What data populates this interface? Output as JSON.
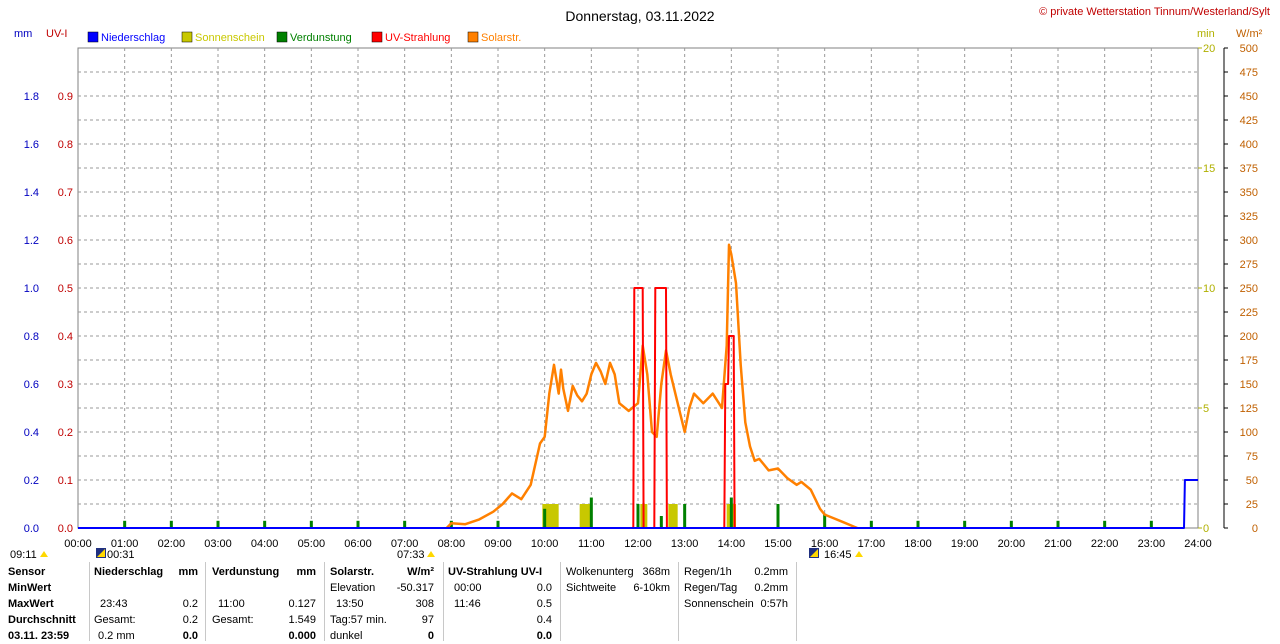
{
  "header": {
    "title": "Donnerstag, 03.11.2022",
    "copyright": "© private Wetterstation Tinnum/Westerland/Sylt"
  },
  "axes": {
    "mm_label": "mm",
    "uv_label": "UV-I",
    "min_label": "min",
    "wm2_label": "W/m²"
  },
  "legend": [
    {
      "label": "Niederschlag",
      "color": "#0000ff"
    },
    {
      "label": "Sonnenschein",
      "color": "#c8c800"
    },
    {
      "label": "Verdunstung",
      "color": "#008000"
    },
    {
      "label": "UV-Strahlung",
      "color": "#ff0000"
    },
    {
      "label": "Solarstr.",
      "color": "#ff8000"
    }
  ],
  "markers": {
    "sunrise_prev": "09:11",
    "moonrise": "00:31",
    "sunrise": "07:33",
    "sunset": "16:45"
  },
  "chart_data": {
    "type": "line",
    "title": "Donnerstag, 03.11.2022",
    "x_range": [
      "00:00",
      "24:00"
    ],
    "x_ticks": [
      "00:00",
      "01:00",
      "02:00",
      "03:00",
      "04:00",
      "05:00",
      "06:00",
      "07:00",
      "08:00",
      "09:00",
      "10:00",
      "11:00",
      "12:00",
      "13:00",
      "14:00",
      "15:00",
      "16:00",
      "17:00",
      "18:00",
      "19:00",
      "20:00",
      "21:00",
      "22:00",
      "23:00",
      "24:00"
    ],
    "y_mm": {
      "label": "mm",
      "range": [
        0,
        2.0
      ],
      "ticks": [
        "0.0",
        "0.2",
        "0.4",
        "0.6",
        "0.8",
        "1.0",
        "1.2",
        "1.4",
        "1.6",
        "1.8"
      ]
    },
    "y_uv": {
      "label": "UV-I",
      "range": [
        0,
        1.0
      ],
      "ticks": [
        "0.0",
        "0.1",
        "0.2",
        "0.3",
        "0.4",
        "0.5",
        "0.6",
        "0.7",
        "0.8",
        "0.9"
      ]
    },
    "y_min": {
      "label": "min",
      "range": [
        0,
        20
      ],
      "ticks": [
        "0",
        "5",
        "10",
        "15",
        "20"
      ]
    },
    "y_wm2": {
      "label": "W/m²",
      "range": [
        0,
        500
      ],
      "ticks": [
        "0",
        "25",
        "50",
        "75",
        "100",
        "125",
        "150",
        "175",
        "200",
        "225",
        "250",
        "275",
        "300",
        "325",
        "350",
        "375",
        "400",
        "425",
        "450",
        "475",
        "500"
      ]
    },
    "grid": true,
    "series": [
      {
        "name": "Solarstr.",
        "axis": "W/m²",
        "color": "#ff8000",
        "points": [
          [
            7.9,
            0
          ],
          [
            8.0,
            5
          ],
          [
            8.3,
            4
          ],
          [
            8.6,
            9
          ],
          [
            8.9,
            17
          ],
          [
            9.1,
            25
          ],
          [
            9.3,
            36
          ],
          [
            9.5,
            30
          ],
          [
            9.7,
            45
          ],
          [
            9.9,
            88
          ],
          [
            10.0,
            95
          ],
          [
            10.1,
            140
          ],
          [
            10.2,
            170
          ],
          [
            10.3,
            140
          ],
          [
            10.35,
            165
          ],
          [
            10.4,
            145
          ],
          [
            10.5,
            122
          ],
          [
            10.6,
            148
          ],
          [
            10.7,
            138
          ],
          [
            10.8,
            132
          ],
          [
            10.9,
            140
          ],
          [
            11.0,
            160
          ],
          [
            11.1,
            172
          ],
          [
            11.2,
            163
          ],
          [
            11.3,
            150
          ],
          [
            11.4,
            172
          ],
          [
            11.5,
            160
          ],
          [
            11.6,
            130
          ],
          [
            11.8,
            122
          ],
          [
            12.0,
            130
          ],
          [
            12.1,
            190
          ],
          [
            12.2,
            160
          ],
          [
            12.3,
            100
          ],
          [
            12.4,
            95
          ],
          [
            12.5,
            150
          ],
          [
            12.6,
            185
          ],
          [
            12.7,
            160
          ],
          [
            12.9,
            120
          ],
          [
            13.0,
            100
          ],
          [
            13.1,
            125
          ],
          [
            13.2,
            140
          ],
          [
            13.4,
            130
          ],
          [
            13.6,
            140
          ],
          [
            13.8,
            125
          ],
          [
            13.9,
            190
          ],
          [
            13.95,
            295
          ],
          [
            14.0,
            285
          ],
          [
            14.1,
            255
          ],
          [
            14.2,
            170
          ],
          [
            14.3,
            110
          ],
          [
            14.4,
            85
          ],
          [
            14.5,
            70
          ],
          [
            14.6,
            72
          ],
          [
            14.8,
            60
          ],
          [
            15.0,
            62
          ],
          [
            15.2,
            52
          ],
          [
            15.4,
            45
          ],
          [
            15.5,
            48
          ],
          [
            15.7,
            40
          ],
          [
            15.9,
            20
          ],
          [
            16.0,
            14
          ],
          [
            16.2,
            10
          ],
          [
            16.4,
            6
          ],
          [
            16.6,
            2
          ],
          [
            16.7,
            0
          ]
        ]
      },
      {
        "name": "UV-Strahlung",
        "axis": "UV-I",
        "color": "#ff0000",
        "points": [
          [
            11.9,
            0
          ],
          [
            11.92,
            0.5
          ],
          [
            12.1,
            0.5
          ],
          [
            12.12,
            0
          ],
          [
            12.35,
            0
          ],
          [
            12.37,
            0.5
          ],
          [
            12.6,
            0.5
          ],
          [
            12.62,
            0
          ],
          [
            13.85,
            0
          ],
          [
            13.87,
            0.3
          ],
          [
            13.93,
            0.3
          ],
          [
            13.95,
            0.4
          ],
          [
            14.05,
            0.4
          ],
          [
            14.07,
            0
          ]
        ]
      },
      {
        "name": "Sonnenschein",
        "axis": "min",
        "color": "#c8c800",
        "bars": [
          [
            9.95,
            10.3,
            1
          ],
          [
            10.75,
            11.0,
            1
          ],
          [
            12.05,
            12.2,
            1
          ],
          [
            12.65,
            12.85,
            1
          ],
          [
            13.9,
            14.1,
            1
          ]
        ]
      },
      {
        "name": "Verdunstung",
        "axis": "mm",
        "color": "#008000",
        "spikes": [
          [
            1.0,
            0.03
          ],
          [
            2.0,
            0.03
          ],
          [
            3.0,
            0.03
          ],
          [
            4.0,
            0.03
          ],
          [
            5.0,
            0.03
          ],
          [
            6.0,
            0.03
          ],
          [
            7.0,
            0.03
          ],
          [
            8.0,
            0.03
          ],
          [
            9.0,
            0.03
          ],
          [
            10.0,
            0.08
          ],
          [
            11.0,
            0.127
          ],
          [
            12.0,
            0.1
          ],
          [
            12.5,
            0.05
          ],
          [
            13.0,
            0.1
          ],
          [
            14.0,
            0.127
          ],
          [
            15.0,
            0.1
          ],
          [
            16.0,
            0.06
          ],
          [
            17.0,
            0.03
          ],
          [
            18.0,
            0.03
          ],
          [
            19.0,
            0.03
          ],
          [
            20.0,
            0.03
          ],
          [
            21.0,
            0.03
          ],
          [
            22.0,
            0.03
          ],
          [
            23.0,
            0.03
          ]
        ]
      },
      {
        "name": "Niederschlag",
        "axis": "mm",
        "color": "#0000ff",
        "points": [
          [
            0,
            0
          ],
          [
            23.7,
            0
          ],
          [
            23.72,
            0.2
          ],
          [
            24,
            0.2
          ]
        ]
      }
    ]
  },
  "table": {
    "sensor": {
      "header": "Sensor",
      "min": "MinWert",
      "max": "MaxWert",
      "avg": "Durchschnitt",
      "date": "03.11. 23:59"
    },
    "niederschlag": {
      "header": "Niederschlag",
      "unit": "mm",
      "max_time": "23:43",
      "max_val": "0.2",
      "total_label": "Gesamt:",
      "total_val": "0.2",
      "last_left": "0.2 mm",
      "last_right": "0.0"
    },
    "verdunstung": {
      "header": "Verdunstung",
      "unit": "mm",
      "max_time": "11:00",
      "max_val": "0.127",
      "total_label": "Gesamt:",
      "total_val": "1.549",
      "last_right": "0.000"
    },
    "solar": {
      "header": "Solarstr.",
      "unit": "W/m²",
      "elev_label": "Elevation",
      "elev_val": "-50.317",
      "max_time": "13:50",
      "max_val": "308",
      "tag_label": "Tag:57 min.",
      "tag_val": "97",
      "dark_label": "dunkel",
      "dark_val": "0"
    },
    "uv": {
      "header": "UV-Strahlung UV-I",
      "min_time": "00:00",
      "min_val": "0.0",
      "max_time": "11:46",
      "max_val": "0.5",
      "avg_val": "0.4",
      "last_val": "0.0"
    },
    "wolken": {
      "label1": "Wolkenunterg",
      "val1": "368m",
      "label2": "Sichtweite",
      "val2": "6-10km"
    },
    "regen": {
      "label1": "Regen/1h",
      "val1": "0.2mm",
      "label2": "Regen/Tag",
      "val2": "0.2mm",
      "label3": "Sonnenschein",
      "val3": "0:57h"
    }
  }
}
